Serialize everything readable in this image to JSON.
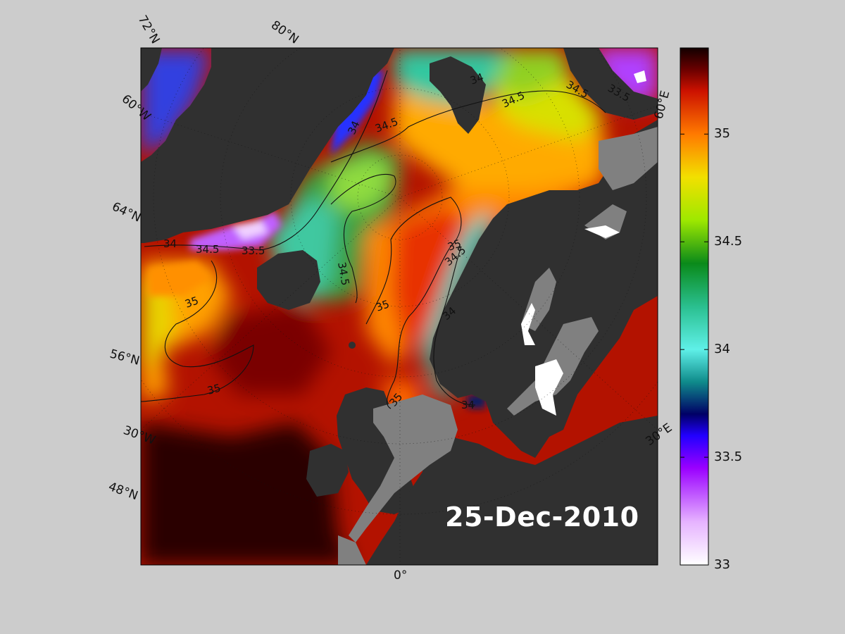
{
  "date": "25-Dec-2010",
  "colors": {
    "page_background": "#cccccc",
    "land": "#303030",
    "no_data": "#808080",
    "ice": "#ffffff",
    "contour": "#111111"
  },
  "colorbar": {
    "range": [
      33,
      35.4
    ],
    "tick_labels": [
      "33",
      "33.5",
      "34",
      "34.5",
      "35"
    ],
    "stops": [
      {
        "value": 33.0,
        "color": "#ffffff"
      },
      {
        "value": 33.2,
        "color": "#e6b3ff"
      },
      {
        "value": 33.45,
        "color": "#9a00ff"
      },
      {
        "value": 33.6,
        "color": "#2200ff"
      },
      {
        "value": 33.7,
        "color": "#000066"
      },
      {
        "value": 33.85,
        "color": "#0f8b8b"
      },
      {
        "value": 34.0,
        "color": "#5ff0e8"
      },
      {
        "value": 34.2,
        "color": "#2abf8f"
      },
      {
        "value": 34.4,
        "color": "#0a8a1a"
      },
      {
        "value": 34.6,
        "color": "#9ee800"
      },
      {
        "value": 34.8,
        "color": "#f2e000"
      },
      {
        "value": 35.0,
        "color": "#ff7a00"
      },
      {
        "value": 35.2,
        "color": "#cc1100"
      },
      {
        "value": 35.3,
        "color": "#6a0000"
      },
      {
        "value": 35.4,
        "color": "#120000"
      }
    ]
  },
  "edge_labels": {
    "lat_72": "72°N",
    "lat_80": "80°N",
    "lon_60w": "60°W",
    "lat_64": "64°N",
    "lat_56": "56°N",
    "lon_30w": "30°W",
    "lat_48": "48°N",
    "lon_0": "0°",
    "lon_30e": "30°E",
    "lon_60e": "60°E"
  },
  "contour_labels": [
    {
      "id": "c1",
      "text": "34"
    },
    {
      "id": "c2",
      "text": "34.5"
    },
    {
      "id": "c3",
      "text": "34"
    },
    {
      "id": "c4",
      "text": "34.5"
    },
    {
      "id": "c5",
      "text": "34.5"
    },
    {
      "id": "c6",
      "text": "33.5"
    },
    {
      "id": "c7",
      "text": "34"
    },
    {
      "id": "c8",
      "text": "34.5"
    },
    {
      "id": "c9",
      "text": "33.5"
    },
    {
      "id": "c10",
      "text": "34.5"
    },
    {
      "id": "c11",
      "text": "35"
    },
    {
      "id": "c12",
      "text": "35"
    },
    {
      "id": "c13",
      "text": "34.5"
    },
    {
      "id": "c14",
      "text": "35"
    },
    {
      "id": "c15",
      "text": "34"
    },
    {
      "id": "c16",
      "text": "35"
    },
    {
      "id": "c17",
      "text": "35"
    },
    {
      "id": "c18",
      "text": "34"
    }
  ]
}
